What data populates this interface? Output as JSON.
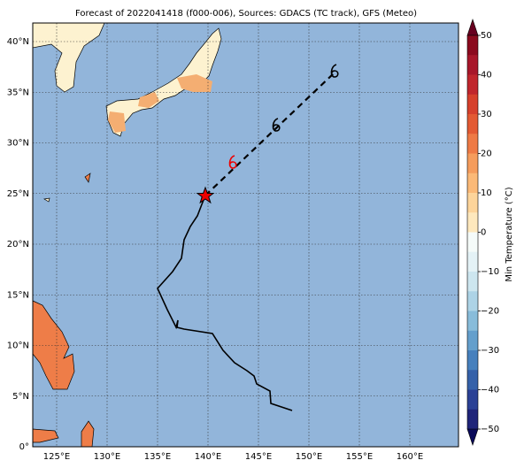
{
  "title": "Forecast of 2022041418 (f000-006), Sources: GDACS (TC track), GFS (Meteo)",
  "lon_labels": [
    "125°E",
    "130°E",
    "135°E",
    "140°E",
    "145°E",
    "150°E",
    "155°E",
    "160°E"
  ],
  "lat_labels": [
    "0°",
    "5°N",
    "10°N",
    "15°N",
    "20°N",
    "25°N",
    "30°N",
    "35°N",
    "40°N"
  ],
  "colorbar": {
    "label": "Min Temperature (°C)",
    "ticks": [
      "50",
      "40",
      "30",
      "20",
      "10",
      "0",
      "−10",
      "−20",
      "−30",
      "−40",
      "−50"
    ],
    "colors": [
      "#8b0a1e",
      "#a8172a",
      "#c0262d",
      "#d6402c",
      "#e35a33",
      "#ee7a45",
      "#f59c5c",
      "#fbb977",
      "#fdd49a",
      "#fee8bd",
      "#f5fbf9",
      "#e4f2f6",
      "#cde6ef",
      "#add3e6",
      "#88bcda",
      "#649fcc",
      "#4680bd",
      "#3561a9",
      "#2b4195",
      "#1f2479"
    ]
  }
}
